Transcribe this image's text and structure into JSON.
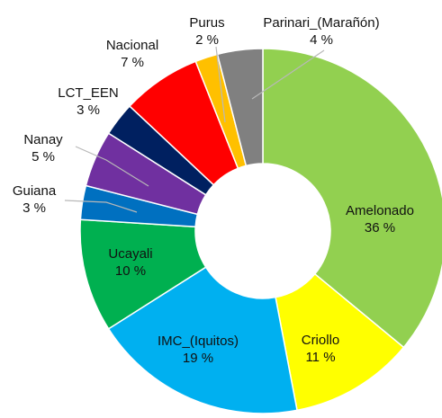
{
  "chart_data": {
    "type": "pie",
    "donut": true,
    "title": "",
    "slices": [
      {
        "name": "Amelonado",
        "value": 36,
        "label": "36 %",
        "color": "#92d050"
      },
      {
        "name": "Criollo",
        "value": 11,
        "label": "11 %",
        "color": "#ffff00"
      },
      {
        "name": "IMC_(Iquitos)",
        "value": 19,
        "label": "19 %",
        "color": "#00b0f0"
      },
      {
        "name": "Ucayali",
        "value": 10,
        "label": "10 %",
        "color": "#00b050"
      },
      {
        "name": "Guiana",
        "value": 3,
        "label": "3 %",
        "color": "#0070c0"
      },
      {
        "name": "Nanay",
        "value": 5,
        "label": "5 %",
        "color": "#7030a0"
      },
      {
        "name": "LCT_EEN",
        "value": 3,
        "label": "3 %",
        "color": "#002060"
      },
      {
        "name": "Nacional",
        "value": 7,
        "label": "7 %",
        "color": "#ff0000"
      },
      {
        "name": "Purus",
        "value": 2,
        "label": "2 %",
        "color": "#ffc000"
      },
      {
        "name": "Parinari_(Marañón)",
        "value": 4,
        "label": "4 %",
        "color": "#808080"
      }
    ]
  }
}
